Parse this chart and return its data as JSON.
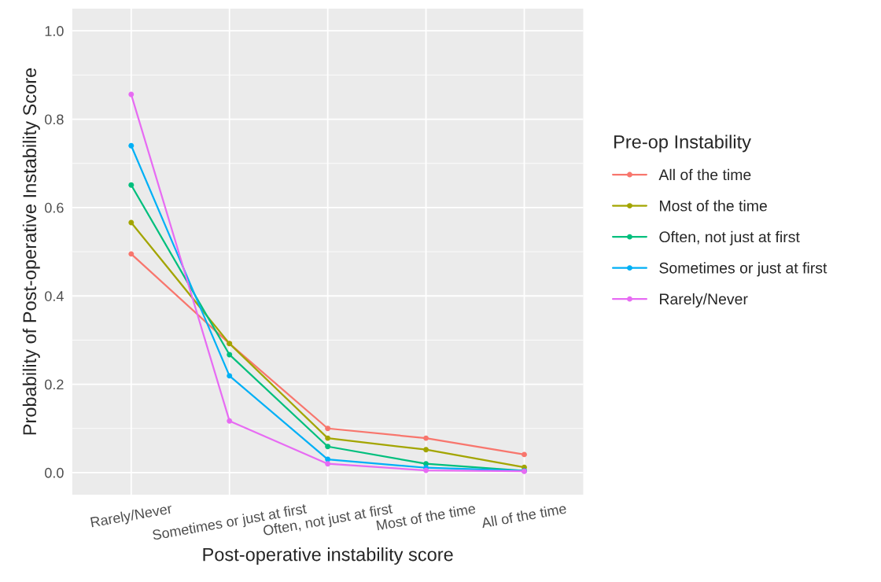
{
  "chart_data": {
    "type": "line",
    "xlabel": "Post-operative instability score",
    "ylabel": "Probability of Post-operative Instability Score",
    "legend_title": "Pre-op Instability",
    "categories": [
      "Rarely/Never",
      "Sometimes or just at first",
      "Often, not just at first",
      "Most of the time",
      "All of the time"
    ],
    "series": [
      {
        "name": "All of the time",
        "color": "#f8766d",
        "values": [
          0.495,
          0.292,
          0.1,
          0.078,
          0.041
        ]
      },
      {
        "name": "Most of the time",
        "color": "#a3a500",
        "values": [
          0.566,
          0.292,
          0.078,
          0.052,
          0.012
        ]
      },
      {
        "name": "Often, not just at first",
        "color": "#00bf7d",
        "values": [
          0.651,
          0.267,
          0.059,
          0.02,
          0.004
        ]
      },
      {
        "name": "Sometimes or just at first",
        "color": "#00b0f6",
        "values": [
          0.74,
          0.219,
          0.03,
          0.011,
          0.004
        ]
      },
      {
        "name": "Rarely/Never",
        "color": "#e76bf3",
        "values": [
          0.856,
          0.117,
          0.02,
          0.005,
          0.003
        ]
      }
    ],
    "ylim": [
      -0.05,
      1.05
    ],
    "yticks": [
      {
        "value": 0,
        "label": "0.0"
      },
      0.2,
      0.4,
      0.6,
      0.8,
      {
        "value": 1,
        "label": "1.0"
      }
    ],
    "grid": true,
    "legend": "right",
    "marker": "circle",
    "line_style": "solid"
  }
}
